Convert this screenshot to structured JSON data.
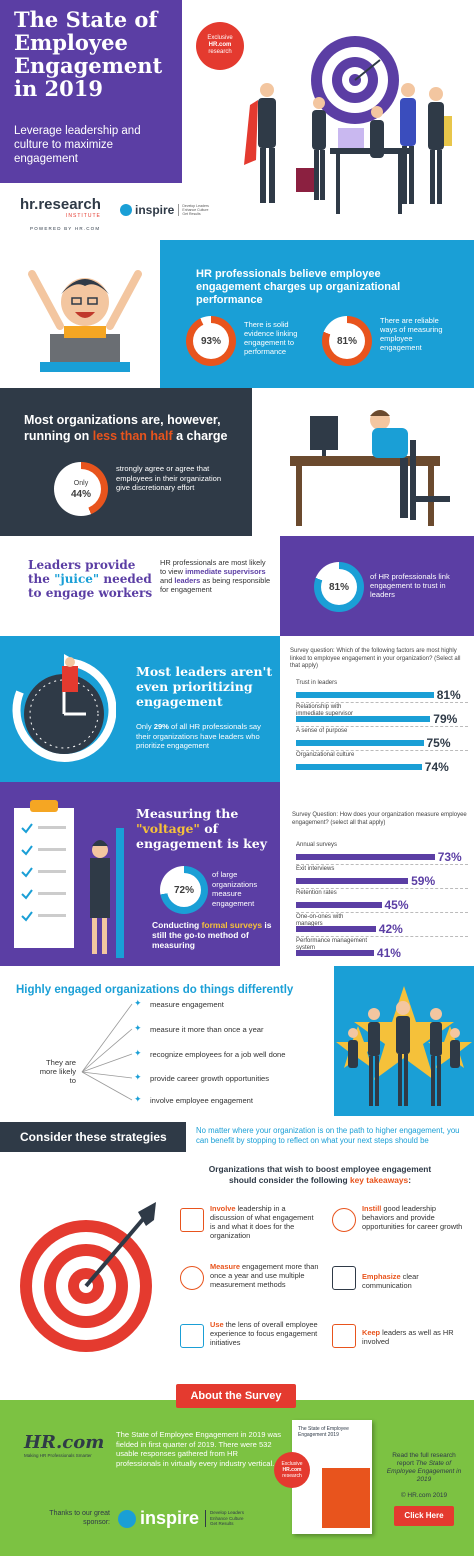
{
  "header": {
    "title_lines": [
      "The State of",
      "Employee",
      "Engagement",
      "in 2019"
    ],
    "subtitle_lines": [
      "Leverage leadership and",
      "culture to maximize",
      "engagement"
    ],
    "badge_lines": [
      "Exclusive",
      "HR.com",
      "research"
    ],
    "hrresearch_logo": "hr.research",
    "hrresearch_sub": "INSTITUTE",
    "powered_by": "POWERED BY HR.COM",
    "inspire_logo": "inspire",
    "inspire_tag": [
      "Develop Leaders",
      "Enhance Culture",
      "Get Results"
    ]
  },
  "section1": {
    "title": "HR professionals believe employee engagement charges up organizational performance",
    "stat1_value": "93%",
    "stat1_text": "There is solid evidence linking engagement to performance",
    "stat2_value": "81%",
    "stat2_text": "There are reliable ways of measuring employee engagement"
  },
  "section2": {
    "title_pre": "Most organizations are, however, running on ",
    "title_highlight": "less than half",
    "title_post": " a charge",
    "donut_label": "Only",
    "donut_value": "44%",
    "text": "strongly agree or agree that employees in their organization give discretionary effort"
  },
  "section3": {
    "title_a": "Leaders provide",
    "title_b_pre": "the ",
    "title_b_hl": "\"juice\"",
    "title_b_post": " needed",
    "title_c": "to engage workers",
    "mid_pre": "HR professionals are most likely to view ",
    "mid_b1": "immediate supervisors",
    "mid_and": " and ",
    "mid_b2": "leaders",
    "mid_post": " as being responsible for engagement",
    "stat_value": "81%",
    "stat_text": "of HR professionals link engagement to trust in leaders"
  },
  "section4": {
    "title": "Most leaders aren't even prioritizing engagement",
    "text_pre": "Only ",
    "text_bold": "29%",
    "text_post": " of all HR professionals say their organizations have leaders who prioritize engagement",
    "question": "Survey question: Which of the following factors are most highly linked to employee engagement in your organization? (Select all that apply)",
    "bars": [
      {
        "label": "Trust in leaders",
        "value": 81,
        "display": "81%"
      },
      {
        "label": "Relationship with immediate supervisor",
        "value": 79,
        "display": "79%"
      },
      {
        "label": "A sense of purpose",
        "value": 75,
        "display": "75%"
      },
      {
        "label": "Organizational culture",
        "value": 74,
        "display": "74%"
      }
    ]
  },
  "section5": {
    "title_pre": "Measuring the ",
    "title_hl": "\"voltage\"",
    "title_post": " of engagement is key",
    "donut_value": "72%",
    "donut_text": "of large organizations measure engagement",
    "conclusion_pre": "Conducting ",
    "conclusion_hl": "formal surveys",
    "conclusion_post": " is still the go-to method of measuring",
    "question": "Survey Question: How does your organization measure employee engagement? (select all that apply)",
    "bars": [
      {
        "label": "Annual surveys",
        "value": 73,
        "display": "73%"
      },
      {
        "label": "Exit interviews",
        "value": 59,
        "display": "59%"
      },
      {
        "label": "Retention rates",
        "value": 45,
        "display": "45%"
      },
      {
        "label": "One-on-ones with managers",
        "value": 42,
        "display": "42%"
      },
      {
        "label": "Performance management system",
        "value": 41,
        "display": "41%"
      }
    ]
  },
  "section6": {
    "title": "Highly engaged organizations do things differently",
    "likely": "They are more likely to",
    "items": [
      "measure engagement",
      "measure it more than once a year",
      "recognize employees for a job well done",
      "provide career growth opportunities",
      "involve employee engagement"
    ]
  },
  "section7": {
    "title": "Consider these strategies",
    "intro": "No matter where your organization is on the path to higher engagement, you can benefit by stopping to reflect on what your next steps should be",
    "subtitle_pre": "Organizations that wish to boost employee engagement should consider the following ",
    "subtitle_hl": "key takeaways",
    "subtitle_post": ":",
    "takeaways": [
      {
        "bold": "Involve",
        "rest": " leadership in a discussion of what engagement is and what it does for the organization",
        "icon": "meeting-icon"
      },
      {
        "bold": "Instill",
        "rest": " good leadership behaviors and provide opportunities for career growth",
        "icon": "lightbulb-icon"
      },
      {
        "bold": "Measure",
        "rest": " engagement more than once a year and use multiple measurement methods",
        "icon": "chart-icon"
      },
      {
        "bold": "Emphasize",
        "rest": " clear communication",
        "icon": "chat-icon"
      },
      {
        "bold": "Use",
        "rest": " the lens of overall employee experience to focus engagement initiatives",
        "icon": "magnifier-icon"
      },
      {
        "bold": "Keep",
        "rest": " leaders as well as HR involved",
        "icon": "handshake-icon"
      }
    ]
  },
  "section8": {
    "tab": "About the Survey",
    "hrcom_logo": "HR.com",
    "hrcom_tag": "Making HR Professionals Smarter",
    "text": "The State of Employee Engagement in 2019 was fielded in first quarter of 2019. There were 532 usable responses gathered from HR professionals in virtually every industry vertical.",
    "sponsor": "Thanks to our great sponsor:",
    "inspire_logo": "inspire",
    "inspire_tag": [
      "Develop Leaders",
      "Enhance Culture",
      "Get Results"
    ],
    "report_title": "The State of Employee Engagement 2019",
    "badge_lines": [
      "Exclusive",
      "HR.com",
      "research"
    ],
    "read_pre": "Read the full research report ",
    "read_italic": "The State of Employee Engagement in 2019",
    "copyright": "© HR.com 2019",
    "button": "Click Here"
  },
  "colors": {
    "purple": "#5b3ea4",
    "blue": "#1a9fd6",
    "dark": "#2f3a47",
    "orange": "#e8541d",
    "green": "#7cc242",
    "red": "#e43a2f"
  }
}
